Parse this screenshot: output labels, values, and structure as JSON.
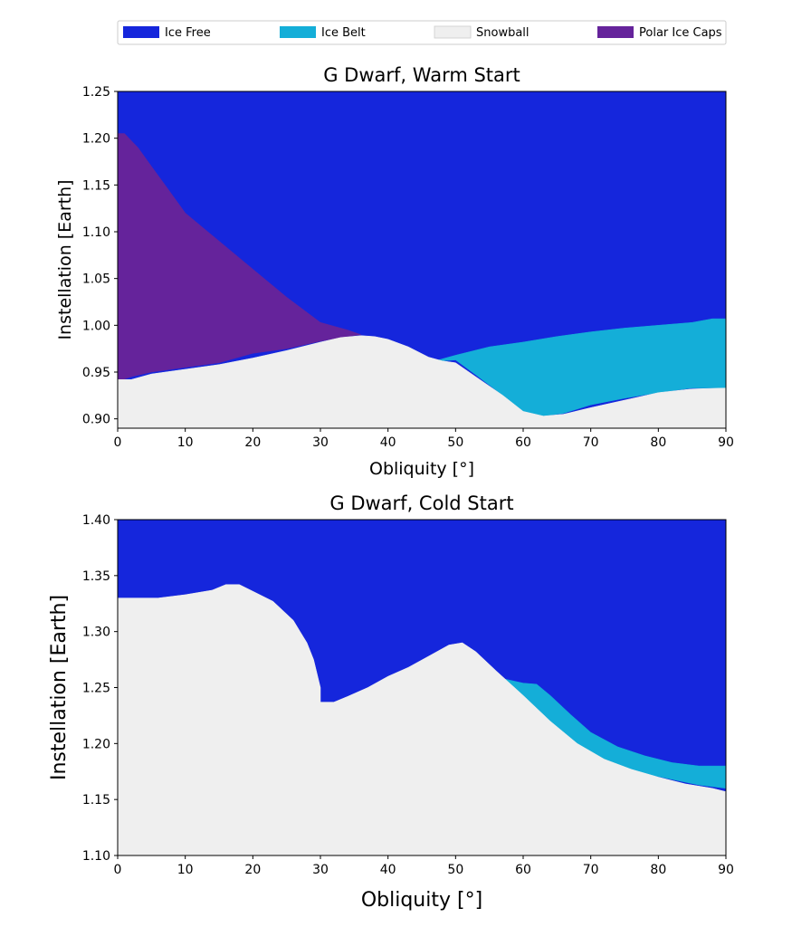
{
  "legend": {
    "placement": "top",
    "entries": [
      {
        "label": "Ice Free",
        "color": "#1526dc"
      },
      {
        "label": "Ice Belt",
        "color": "#14aed8"
      },
      {
        "label": "Snowball",
        "color": "#efefef"
      },
      {
        "label": "Polar Ice Caps",
        "color": "#65239b"
      }
    ]
  },
  "chart_data": [
    {
      "type": "area",
      "title": "G Dwarf, Warm Start",
      "xlabel": "Obliquity [$^\\circ$]",
      "ylabel": "Instellation [Earth]",
      "xlim": [
        0,
        90
      ],
      "ylim": [
        0.89,
        1.25
      ],
      "xticks": [
        "0",
        "10",
        "20",
        "30",
        "40",
        "50",
        "60",
        "70",
        "80",
        "90"
      ],
      "yticks": [
        "0.90",
        "0.95",
        "1.00",
        "1.05",
        "1.10",
        "1.15",
        "1.20",
        "1.25"
      ],
      "grid": false,
      "regions": [
        {
          "name": "Ice Free",
          "color": "#1526dc",
          "points": [
            [
              0,
              0.89
            ],
            [
              90,
              0.89
            ],
            [
              90,
              1.25
            ],
            [
              0,
              1.25
            ]
          ]
        },
        {
          "name": "Polar Ice Caps",
          "color": "#65239b",
          "points": [
            [
              0,
              0.94
            ],
            [
              2,
              0.945
            ],
            [
              5,
              0.95
            ],
            [
              10,
              0.955
            ],
            [
              15,
              0.96
            ],
            [
              20,
              0.97
            ],
            [
              25,
              0.975
            ],
            [
              30,
              0.983
            ],
            [
              33,
              0.987
            ],
            [
              36,
              0.99
            ],
            [
              34,
              0.995
            ],
            [
              30,
              1.003
            ],
            [
              25,
              1.03
            ],
            [
              20,
              1.06
            ],
            [
              15,
              1.09
            ],
            [
              10,
              1.12
            ],
            [
              7,
              1.15
            ],
            [
              5,
              1.17
            ],
            [
              3,
              1.19
            ],
            [
              1,
              1.205
            ],
            [
              0,
              1.205
            ]
          ]
        },
        {
          "name": "Ice Belt",
          "color": "#14aed8",
          "points": [
            [
              47,
              0.962
            ],
            [
              50,
              0.968
            ],
            [
              55,
              0.977
            ],
            [
              60,
              0.982
            ],
            [
              65,
              0.988
            ],
            [
              70,
              0.993
            ],
            [
              75,
              0.997
            ],
            [
              80,
              1.0
            ],
            [
              85,
              1.003
            ],
            [
              88,
              1.007
            ],
            [
              90,
              1.007
            ],
            [
              90,
              0.933
            ],
            [
              85,
              0.933
            ],
            [
              80,
              0.928
            ],
            [
              75,
              0.922
            ],
            [
              70,
              0.915
            ],
            [
              66,
              0.906
            ],
            [
              63,
              0.903
            ],
            [
              60,
              0.908
            ],
            [
              57,
              0.925
            ],
            [
              53,
              0.947
            ],
            [
              50,
              0.963
            ],
            [
              48,
              0.962
            ]
          ]
        },
        {
          "name": "Snowball",
          "color": "#efefef",
          "points": [
            [
              0,
              0.89
            ],
            [
              0,
              0.942
            ],
            [
              2,
              0.942
            ],
            [
              5,
              0.948
            ],
            [
              10,
              0.953
            ],
            [
              15,
              0.958
            ],
            [
              20,
              0.965
            ],
            [
              25,
              0.973
            ],
            [
              30,
              0.982
            ],
            [
              33,
              0.987
            ],
            [
              36,
              0.989
            ],
            [
              38,
              0.988
            ],
            [
              40,
              0.985
            ],
            [
              43,
              0.977
            ],
            [
              46,
              0.966
            ],
            [
              48,
              0.962
            ],
            [
              50,
              0.96
            ],
            [
              53,
              0.945
            ],
            [
              57,
              0.925
            ],
            [
              60,
              0.908
            ],
            [
              63,
              0.903
            ],
            [
              66,
              0.905
            ],
            [
              70,
              0.912
            ],
            [
              75,
              0.92
            ],
            [
              80,
              0.928
            ],
            [
              85,
              0.932
            ],
            [
              90,
              0.933
            ],
            [
              90,
              0.89
            ]
          ]
        }
      ]
    },
    {
      "type": "area",
      "title": "G Dwarf, Cold Start",
      "xlabel": "Obliquity [$^\\circ$]",
      "ylabel": "Instellation [Earth]",
      "xlim": [
        0,
        90
      ],
      "ylim": [
        1.1,
        1.4
      ],
      "xticks": [
        "0",
        "10",
        "20",
        "30",
        "40",
        "50",
        "60",
        "70",
        "80",
        "90"
      ],
      "yticks": [
        "1.10",
        "1.15",
        "1.20",
        "1.25",
        "1.30",
        "1.35",
        "1.40"
      ],
      "grid": false,
      "regions": [
        {
          "name": "Ice Free",
          "color": "#1526dc",
          "points": [
            [
              0,
              1.1
            ],
            [
              90,
              1.1
            ],
            [
              90,
              1.4
            ],
            [
              0,
              1.4
            ]
          ]
        },
        {
          "name": "Ice Belt",
          "color": "#14aed8",
          "points": [
            [
              54,
              1.265
            ],
            [
              57,
              1.258
            ],
            [
              60,
              1.254
            ],
            [
              62,
              1.253
            ],
            [
              64,
              1.243
            ],
            [
              67,
              1.226
            ],
            [
              70,
              1.21
            ],
            [
              74,
              1.197
            ],
            [
              78,
              1.189
            ],
            [
              82,
              1.183
            ],
            [
              86,
              1.18
            ],
            [
              90,
              1.18
            ],
            [
              90,
              1.16
            ],
            [
              86,
              1.163
            ],
            [
              82,
              1.168
            ],
            [
              78,
              1.173
            ],
            [
              74,
              1.18
            ],
            [
              70,
              1.19
            ],
            [
              66,
              1.202
            ],
            [
              62,
              1.222
            ],
            [
              58,
              1.248
            ],
            [
              55,
              1.26
            ]
          ]
        },
        {
          "name": "Snowball",
          "color": "#efefef",
          "points": [
            [
              0,
              1.1
            ],
            [
              0,
              1.33
            ],
            [
              6,
              1.33
            ],
            [
              10,
              1.333
            ],
            [
              14,
              1.337
            ],
            [
              16,
              1.342
            ],
            [
              18,
              1.342
            ],
            [
              20,
              1.336
            ],
            [
              23,
              1.327
            ],
            [
              26,
              1.31
            ],
            [
              27,
              1.3
            ],
            [
              28,
              1.29
            ],
            [
              29,
              1.275
            ],
            [
              30,
              1.25
            ],
            [
              30,
              1.237
            ],
            [
              32,
              1.237
            ],
            [
              34,
              1.242
            ],
            [
              37,
              1.25
            ],
            [
              40,
              1.26
            ],
            [
              43,
              1.268
            ],
            [
              46,
              1.278
            ],
            [
              49,
              1.288
            ],
            [
              51,
              1.29
            ],
            [
              53,
              1.282
            ],
            [
              56,
              1.265
            ],
            [
              60,
              1.243
            ],
            [
              64,
              1.22
            ],
            [
              68,
              1.2
            ],
            [
              72,
              1.186
            ],
            [
              76,
              1.177
            ],
            [
              80,
              1.17
            ],
            [
              84,
              1.164
            ],
            [
              88,
              1.16
            ],
            [
              90,
              1.157
            ],
            [
              90,
              1.1
            ]
          ]
        }
      ]
    }
  ]
}
